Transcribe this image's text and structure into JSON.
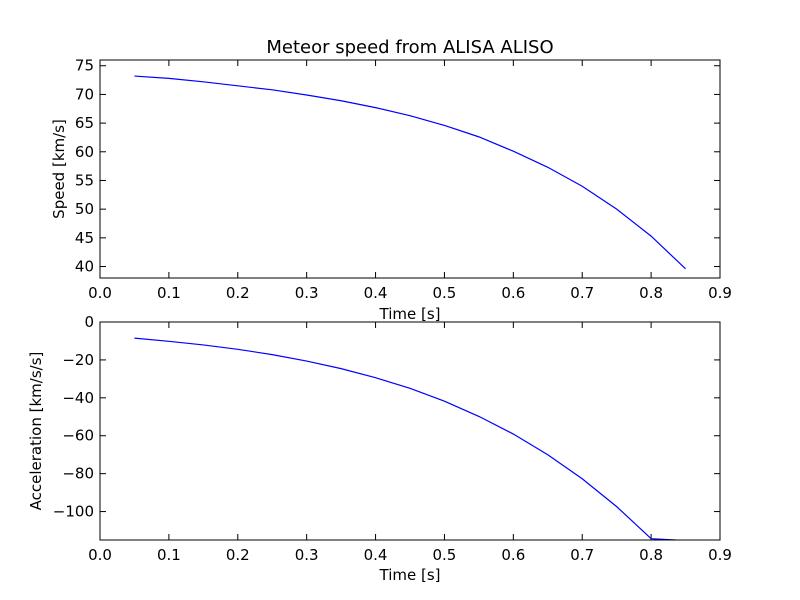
{
  "chart_data": [
    {
      "type": "line",
      "title": "Meteor speed from  ALISA ALISO",
      "xlabel": "Time [s]",
      "ylabel": "Speed [km/s]",
      "xlim": [
        0.0,
        0.9
      ],
      "ylim": [
        38,
        76
      ],
      "xticks": [
        0.0,
        0.1,
        0.2,
        0.3,
        0.4,
        0.5,
        0.6,
        0.7,
        0.8,
        0.9
      ],
      "xtick_labels": [
        "0.0",
        "0.1",
        "0.2",
        "0.3",
        "0.4",
        "0.5",
        "0.6",
        "0.7",
        "0.8",
        "0.9"
      ],
      "yticks": [
        40,
        45,
        50,
        55,
        60,
        65,
        70,
        75
      ],
      "ytick_labels": [
        "40",
        "45",
        "50",
        "55",
        "60",
        "65",
        "70",
        "75"
      ],
      "grid": false,
      "series": [
        {
          "color": "#0000ff",
          "x": [
            0.05,
            0.1,
            0.15,
            0.2,
            0.25,
            0.3,
            0.35,
            0.4,
            0.45,
            0.5,
            0.55,
            0.6,
            0.65,
            0.7,
            0.75,
            0.8,
            0.85
          ],
          "y": [
            73.2,
            72.8,
            72.2,
            71.5,
            70.8,
            69.9,
            68.9,
            67.7,
            66.3,
            64.6,
            62.6,
            60.1,
            57.3,
            54.0,
            50.0,
            45.3,
            39.6
          ]
        }
      ]
    },
    {
      "type": "line",
      "title": "",
      "xlabel": "Time [s]",
      "ylabel": "Acceleration [km/s/s]",
      "xlim": [
        0.0,
        0.9
      ],
      "ylim": [
        -115,
        0
      ],
      "xticks": [
        0.0,
        0.1,
        0.2,
        0.3,
        0.4,
        0.5,
        0.6,
        0.7,
        0.8,
        0.9
      ],
      "xtick_labels": [
        "0.0",
        "0.1",
        "0.2",
        "0.3",
        "0.4",
        "0.5",
        "0.6",
        "0.7",
        "0.8",
        "0.9"
      ],
      "yticks": [
        -100,
        -80,
        -60,
        -40,
        -20,
        0
      ],
      "ytick_labels": [
        "−100",
        "−80",
        "−60",
        "−40",
        "−20",
        "0"
      ],
      "grid": false,
      "series": [
        {
          "color": "#0000ff",
          "x": [
            0.05,
            0.1,
            0.15,
            0.2,
            0.25,
            0.3,
            0.35,
            0.4,
            0.45,
            0.5,
            0.55,
            0.6,
            0.65,
            0.7,
            0.75,
            0.8,
            0.835
          ],
          "y": [
            -8.5,
            -10.2,
            -12.1,
            -14.4,
            -17.2,
            -20.6,
            -24.6,
            -29.4,
            -35.0,
            -41.8,
            -49.8,
            -59.1,
            -70.0,
            -82.7,
            -97.4,
            -114.3,
            -115
          ]
        }
      ]
    }
  ]
}
